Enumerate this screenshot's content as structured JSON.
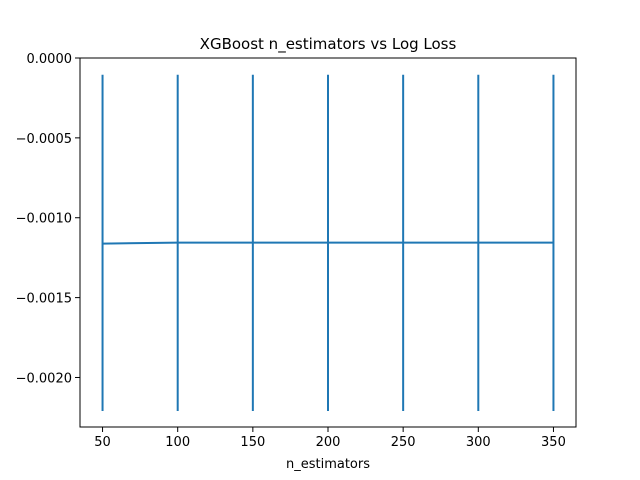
{
  "chart_data": {
    "type": "line",
    "title": "XGBoost n_estimators vs Log Loss",
    "xlabel": "n_estimators",
    "ylabel": "",
    "xlim": [
      35,
      365
    ],
    "ylim": [
      -0.00231,
      0.0
    ],
    "xticks": [
      50,
      100,
      150,
      200,
      250,
      300,
      350
    ],
    "xtick_labels": [
      "50",
      "100",
      "150",
      "200",
      "250",
      "300",
      "350"
    ],
    "yticks": [
      0.0,
      -0.0005,
      -0.001,
      -0.0015,
      -0.002
    ],
    "ytick_labels": [
      "0.0000",
      "−0.0005",
      "−0.0010",
      "−0.0015",
      "−0.0020"
    ],
    "grid": false,
    "color": "#1f77b4",
    "series": [
      {
        "x": [
          50,
          100,
          150,
          200,
          250,
          300,
          350
        ],
        "y": [
          -0.001162,
          -0.001156,
          -0.001156,
          -0.001156,
          -0.001156,
          -0.001156,
          -0.001156
        ],
        "error_low": [
          -0.00221,
          -0.00221,
          -0.00221,
          -0.00221,
          -0.00221,
          -0.00221,
          -0.00221
        ],
        "error_high": [
          -0.000105,
          -0.000105,
          -0.000105,
          -0.000105,
          -0.000105,
          -0.000105,
          -0.000105
        ]
      }
    ]
  }
}
